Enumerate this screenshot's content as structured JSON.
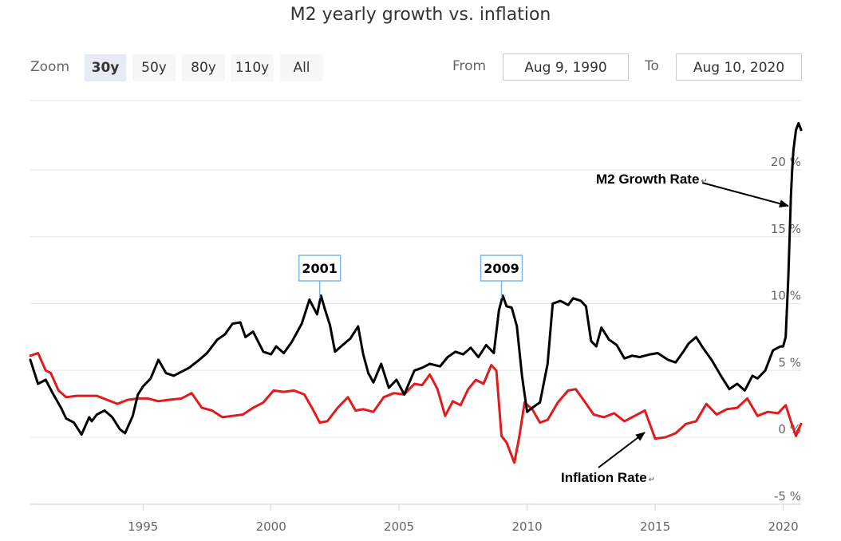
{
  "chart_data": {
    "type": "line",
    "title": "M2 yearly growth vs. inflation",
    "xlabel": "",
    "ylabel": "",
    "xlim": [
      1990.6,
      2020.7
    ],
    "ylim": [
      -5,
      25
    ],
    "y_ticks": [
      -5,
      0,
      5,
      10,
      15,
      20
    ],
    "y_tick_labels": [
      "-5 %",
      "0 %",
      "5 %",
      "10 %",
      "15 %",
      "20 %"
    ],
    "x_ticks": [
      1995,
      2000,
      2005,
      2010,
      2015,
      2020
    ],
    "x_tick_labels": [
      "1995",
      "2000",
      "2005",
      "2010",
      "2015",
      "2020"
    ],
    "grid": true,
    "series": [
      {
        "name": "M2 Growth Rate",
        "color": "#000000",
        "x": [
          1990.6,
          1990.9,
          1991.2,
          1991.5,
          1991.8,
          1992.0,
          1992.3,
          1992.6,
          1992.9,
          1993.0,
          1993.2,
          1993.5,
          1993.8,
          1994.1,
          1994.3,
          1994.6,
          1994.8,
          1995.0,
          1995.3,
          1995.6,
          1995.9,
          1996.2,
          1996.5,
          1996.8,
          1997.2,
          1997.5,
          1997.9,
          1998.2,
          1998.5,
          1998.8,
          1999.0,
          1999.3,
          1999.7,
          2000.0,
          2000.2,
          2000.5,
          2000.8,
          2001.2,
          2001.5,
          2001.8,
          2001.95,
          2002.1,
          2002.3,
          2002.5,
          2002.8,
          2003.1,
          2003.4,
          2003.6,
          2003.8,
          2004.0,
          2004.3,
          2004.6,
          2004.9,
          2005.2,
          2005.6,
          2005.9,
          2006.2,
          2006.6,
          2006.9,
          2007.2,
          2007.5,
          2007.8,
          2008.1,
          2008.4,
          2008.7,
          2008.9,
          2009.05,
          2009.2,
          2009.4,
          2009.6,
          2009.8,
          2010.0,
          2010.2,
          2010.5,
          2010.8,
          2011.0,
          2011.3,
          2011.6,
          2011.8,
          2012.1,
          2012.3,
          2012.5,
          2012.7,
          2012.9,
          2013.2,
          2013.5,
          2013.8,
          2014.1,
          2014.4,
          2014.8,
          2015.1,
          2015.5,
          2015.8,
          2016.1,
          2016.3,
          2016.6,
          2016.9,
          2017.2,
          2017.6,
          2017.9,
          2018.2,
          2018.5,
          2018.8,
          2019.0,
          2019.3,
          2019.6,
          2019.9,
          2020.0,
          2020.1,
          2020.2,
          2020.3,
          2020.35,
          2020.4,
          2020.5,
          2020.6,
          2020.7
        ],
        "values": [
          5.8,
          4.0,
          4.3,
          3.2,
          2.2,
          1.4,
          1.1,
          0.2,
          1.5,
          1.2,
          1.7,
          2.0,
          1.5,
          0.6,
          0.3,
          1.6,
          3.2,
          3.8,
          4.4,
          5.8,
          4.8,
          4.6,
          4.9,
          5.2,
          5.8,
          6.3,
          7.3,
          7.7,
          8.5,
          8.6,
          7.5,
          7.9,
          6.4,
          6.2,
          6.8,
          6.3,
          7.1,
          8.5,
          10.3,
          9.2,
          10.6,
          9.6,
          8.4,
          6.4,
          6.9,
          7.4,
          8.3,
          6.2,
          4.8,
          4.1,
          5.5,
          3.7,
          4.3,
          3.2,
          5.0,
          5.2,
          5.5,
          5.3,
          6.0,
          6.4,
          6.2,
          6.7,
          6.0,
          6.9,
          6.3,
          9.5,
          10.6,
          9.8,
          9.7,
          8.3,
          4.6,
          1.9,
          2.2,
          2.6,
          5.5,
          10.0,
          10.2,
          9.9,
          10.4,
          10.2,
          9.8,
          7.2,
          6.8,
          8.2,
          7.3,
          6.9,
          5.9,
          6.1,
          6.0,
          6.2,
          6.3,
          5.8,
          5.6,
          6.4,
          7.0,
          7.5,
          6.6,
          5.8,
          4.5,
          3.6,
          4.0,
          3.5,
          4.6,
          4.4,
          5.0,
          6.5,
          6.8,
          6.8,
          7.5,
          12.0,
          18.0,
          20.0,
          21.5,
          23.0,
          23.5,
          23.0
        ]
      },
      {
        "name": "Inflation Rate",
        "color": "#e31a1c",
        "x": [
          1990.6,
          1990.9,
          1991.2,
          1991.4,
          1991.7,
          1992.0,
          1992.4,
          1992.8,
          1993.2,
          1993.6,
          1994.0,
          1994.4,
          1994.8,
          1995.2,
          1995.6,
          1996.0,
          1996.5,
          1996.9,
          1997.3,
          1997.7,
          1998.1,
          1998.5,
          1998.9,
          1999.3,
          1999.7,
          2000.1,
          2000.5,
          2000.9,
          2001.3,
          2001.6,
          2001.9,
          2002.2,
          2002.6,
          2003.0,
          2003.3,
          2003.6,
          2004.0,
          2004.4,
          2004.8,
          2005.2,
          2005.6,
          2005.9,
          2006.2,
          2006.5,
          2006.8,
          2007.1,
          2007.4,
          2007.7,
          2008.0,
          2008.3,
          2008.6,
          2008.8,
          2009.0,
          2009.2,
          2009.5,
          2009.7,
          2009.9,
          2010.2,
          2010.5,
          2010.8,
          2011.2,
          2011.6,
          2011.9,
          2012.2,
          2012.6,
          2013.0,
          2013.4,
          2013.8,
          2014.2,
          2014.6,
          2015.0,
          2015.4,
          2015.8,
          2016.2,
          2016.6,
          2017.0,
          2017.4,
          2017.8,
          2018.2,
          2018.6,
          2019.0,
          2019.4,
          2019.8,
          2020.1,
          2020.3,
          2020.5,
          2020.6,
          2020.7
        ],
        "values": [
          6.1,
          6.3,
          5.0,
          4.8,
          3.5,
          3.0,
          3.1,
          3.1,
          3.1,
          2.8,
          2.5,
          2.8,
          2.9,
          2.9,
          2.7,
          2.8,
          2.9,
          3.3,
          2.2,
          2.0,
          1.5,
          1.6,
          1.7,
          2.2,
          2.6,
          3.5,
          3.4,
          3.5,
          3.2,
          2.2,
          1.1,
          1.2,
          2.2,
          3.0,
          2.0,
          2.1,
          1.9,
          3.0,
          3.3,
          3.2,
          4.0,
          3.9,
          4.7,
          3.6,
          1.6,
          2.7,
          2.4,
          3.6,
          4.3,
          4.0,
          5.4,
          5.0,
          0.1,
          -0.4,
          -1.9,
          0.1,
          2.6,
          2.1,
          1.1,
          1.3,
          2.6,
          3.5,
          3.6,
          2.8,
          1.7,
          1.5,
          1.8,
          1.2,
          1.6,
          2.0,
          -0.1,
          0.0,
          0.3,
          1.0,
          1.2,
          2.5,
          1.7,
          2.1,
          2.2,
          2.9,
          1.6,
          1.9,
          1.8,
          2.4,
          1.2,
          0.1,
          0.6,
          1.0
        ]
      }
    ],
    "annotations": [
      {
        "label": "2001",
        "x": 2001.9,
        "y": 10.4,
        "type": "flag"
      },
      {
        "label": "2009",
        "x": 2009.0,
        "y": 10.4,
        "type": "flag"
      },
      {
        "label": "M2 Growth Rate",
        "type": "arrow-label",
        "points_to": "M2 Growth Rate series, 2020"
      },
      {
        "label": "Inflation Rate",
        "type": "arrow-label",
        "points_to": "Inflation Rate series, 2014"
      }
    ]
  },
  "zoom": {
    "label": "Zoom",
    "buttons": [
      "30y",
      "50y",
      "80y",
      "110y",
      "All"
    ],
    "active": "30y"
  },
  "range": {
    "from_label": "From",
    "from_value": "Aug 9, 1990",
    "to_label": "To",
    "to_value": "Aug 10, 2020"
  },
  "labels": {
    "m2": "M2 Growth Rate",
    "inflation": "Inflation Rate",
    "pilcrow": "↵"
  }
}
